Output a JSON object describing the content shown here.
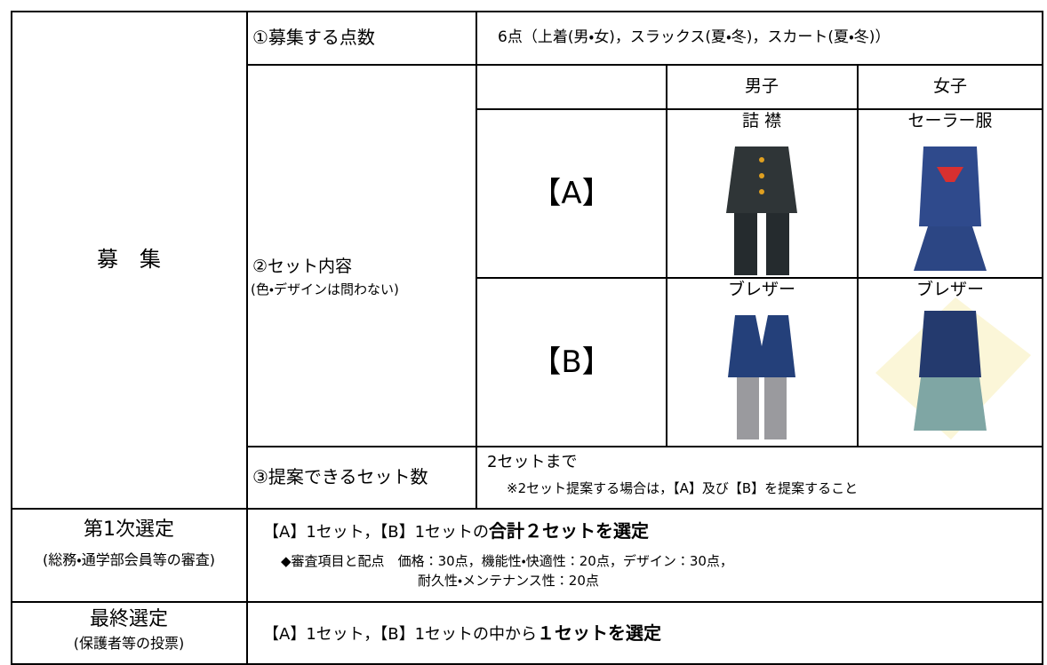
{
  "recruitment": {
    "label": "募　集",
    "items": [
      {
        "label": "①募集する点数",
        "content": "6点（上着(男・女)，スラックス(夏・冬)，スカート(夏・冬)）"
      },
      {
        "label": "②セット内容",
        "note": "(色・デザインは問わない)",
        "headers": [
          "男子",
          "女子"
        ],
        "sets": [
          {
            "name": "【A】",
            "male": "詰 襟",
            "female": "セーラー服"
          },
          {
            "name": "【B】",
            "male": "ブレザー",
            "female": "ブレザー"
          }
        ]
      },
      {
        "label": "③提案できるセット数",
        "content": "2セットまで",
        "note": "※2セット提案する場合は，【A】及び【B】を提案すること"
      }
    ]
  },
  "first_selection": {
    "label": "第1次選定",
    "note": "(総務・通学部会員等の審査)",
    "content": "【A】1セット，【B】1セットの",
    "emphasis": "合計２セットを選定",
    "criteria_label": "◆審査項目と配点",
    "criteria": "価格：30点，機能性・快適性：20点，デザイン：30点，",
    "criteria_continued": "耐久性・メンテナンス性：20点"
  },
  "final_selection": {
    "label": "最終選定",
    "note": "(保護者等の投票)",
    "content": "【A】1セット，【B】1セットの中から",
    "emphasis": "１セットを選定"
  }
}
